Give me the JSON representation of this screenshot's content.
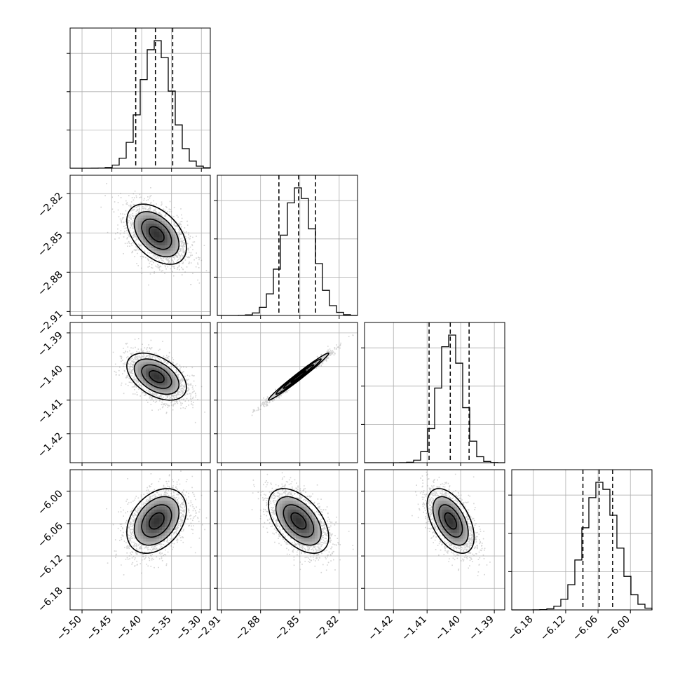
{
  "chart_data": {
    "type": "corner",
    "parameters": [
      {
        "center": -5.375,
        "sd": 0.025,
        "range": [
          -5.52,
          -5.285
        ],
        "ticks": [
          -5.5,
          -5.45,
          -5.4,
          -5.35,
          -5.3
        ],
        "tick_labels": [
          "−5.50",
          "−5.45",
          "−5.40",
          "−5.35",
          "−5.30"
        ],
        "quantiles": [
          -5.41,
          -5.377,
          -5.348
        ]
      },
      {
        "center": -2.851,
        "sd": 0.0115,
        "range": [
          -2.913,
          -2.806
        ],
        "ticks": [
          -2.91,
          -2.88,
          -2.85,
          -2.82
        ],
        "tick_labels": [
          "−2.91",
          "−2.88",
          "−2.85",
          "−2.82"
        ],
        "quantiles": [
          -2.866,
          -2.851,
          -2.838
        ]
      },
      {
        "center": -1.403,
        "sd": 0.0035,
        "range": [
          -1.4286,
          -1.3869
        ],
        "ticks": [
          -1.42,
          -1.41,
          -1.4,
          -1.39
        ],
        "tick_labels": [
          "−1.42",
          "−1.41",
          "−1.40",
          "−1.39"
        ],
        "quantiles": [
          -1.4094,
          -1.4031,
          -1.3975
        ]
      },
      {
        "center": -6.055,
        "sd": 0.03,
        "range": [
          -6.22,
          -5.96
        ],
        "ticks": [
          -6.18,
          -6.12,
          -6.06,
          -6.0
        ],
        "tick_labels": [
          "−6.18",
          "−6.12",
          "−6.06",
          "−6.00"
        ],
        "quantiles": [
          -6.088,
          -6.058,
          -6.033
        ]
      }
    ],
    "correlations": {
      "1-0": -0.45,
      "2-0": -0.45,
      "2-1": 0.985,
      "3-0": 0.35,
      "3-1": -0.5,
      "3-2": -0.5
    },
    "histogram_bins": 20,
    "contour_levels_sigma": [
      0.5,
      1.0,
      1.5,
      2.0
    ],
    "grid": true,
    "colors": {
      "points": "#808080",
      "lines": "#000000",
      "grid": "#b0b0b0"
    }
  }
}
